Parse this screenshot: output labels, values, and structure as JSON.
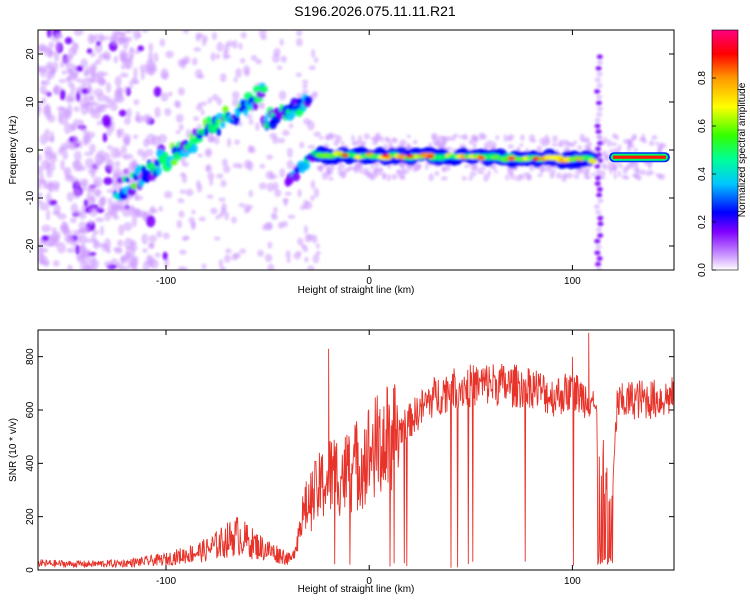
{
  "title": "S196.2026.075.11.11.R21",
  "chart_data": [
    {
      "type": "heatmap",
      "xlabel": "Height of straight line (km)",
      "ylabel": "Frequency (Hz)",
      "xlim": [
        -163,
        150
      ],
      "ylim": [
        -25,
        25
      ],
      "xticks": [
        -100,
        0,
        100
      ],
      "yticks": [
        -20,
        -10,
        0,
        10,
        20
      ],
      "colorbar": {
        "label": "Normalized spectral amplitude",
        "range": [
          0,
          1
        ],
        "ticks": [
          "0.0",
          "0.2",
          "0.4",
          "0.6",
          "0.8"
        ],
        "colors": [
          "#ffffff",
          "#cc99ff",
          "#7f00ff",
          "#0000ff",
          "#00c8ff",
          "#00ff66",
          "#66ff00",
          "#ffff00",
          "#ff9900",
          "#ff0000",
          "#ff0080"
        ]
      },
      "segments": [
        {
          "name": "noise-cloud-left",
          "x": [
            -163,
            -95
          ],
          "freq": [
            -25,
            25
          ],
          "amplitude": 0.1
        },
        {
          "name": "rising-trace-1",
          "x": [
            -125,
            -52
          ],
          "freq": [
            -9,
            12
          ],
          "amplitude": 0.4
        },
        {
          "name": "rising-trace-2",
          "x": [
            -52,
            -30
          ],
          "freq": [
            6,
            10
          ],
          "amplitude": 0.35
        },
        {
          "name": "ramp",
          "x": [
            -40,
            -25
          ],
          "freq": [
            -6,
            -1
          ],
          "amplitude": 0.3
        },
        {
          "name": "main-trace",
          "x": [
            -25,
            110
          ],
          "freq": [
            -1,
            -2
          ],
          "amplitude": 0.85
        },
        {
          "name": "vertical-artifact",
          "x": [
            113,
            113
          ],
          "freq": [
            -25,
            20
          ],
          "amplitude": 0.15
        },
        {
          "name": "end-trace",
          "x": [
            118,
            148
          ],
          "freq": [
            -1.5,
            -1.5
          ],
          "amplitude": 0.95
        }
      ]
    },
    {
      "type": "line",
      "xlabel": "Height of straight line (km)",
      "ylabel": "SNR (10 * v/v)",
      "xlim": [
        -163,
        150
      ],
      "ylim": [
        0,
        900
      ],
      "xticks": [
        -100,
        0,
        100
      ],
      "yticks": [
        0,
        200,
        400,
        600,
        800
      ],
      "color": "#e8332a",
      "series": [
        {
          "name": "SNR",
          "x": [
            -163,
            -140,
            -120,
            -100,
            -80,
            -65,
            -55,
            -45,
            -38,
            -32,
            -28,
            -22,
            -18,
            -12,
            -5,
            0,
            10,
            20,
            30,
            40,
            50,
            60,
            70,
            80,
            90,
            100,
            105,
            110,
            113,
            115,
            118,
            122,
            130,
            140,
            150
          ],
          "y": [
            25,
            22,
            25,
            40,
            75,
            130,
            90,
            60,
            40,
            220,
            270,
            330,
            360,
            360,
            400,
            440,
            490,
            560,
            640,
            680,
            690,
            700,
            690,
            690,
            650,
            670,
            650,
            640,
            520,
            300,
            30,
            620,
            640,
            640,
            650
          ],
          "peaks": [
            {
              "x": -20,
              "y": 830
            },
            {
              "x": 100,
              "y": 800
            },
            {
              "x": 108,
              "y": 890
            }
          ]
        }
      ]
    }
  ]
}
